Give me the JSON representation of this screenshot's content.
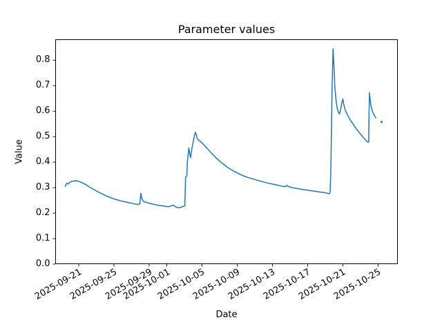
{
  "chart_data": {
    "type": "line",
    "title": "Parameter values",
    "xlabel": "Date",
    "ylabel": "Value",
    "grid": false,
    "legend": "none",
    "background_color": "#ffffff",
    "axis_color": "#000000",
    "line_color": "#1f77b4",
    "x_unit": "days since 2025-09-21",
    "xlim": [
      -2.67,
      36.24
    ],
    "ylim": [
      0.0,
      0.882
    ],
    "x_ticks": [
      {
        "label": "2025-09-21",
        "d": 0
      },
      {
        "label": "2025-09-25",
        "d": 4
      },
      {
        "label": "2025-09-29",
        "d": 8
      },
      {
        "label": "2025-10-01",
        "d": 10
      },
      {
        "label": "2025-10-05",
        "d": 14
      },
      {
        "label": "2025-10-09",
        "d": 18
      },
      {
        "label": "2025-10-13",
        "d": 22
      },
      {
        "label": "2025-10-17",
        "d": 26
      },
      {
        "label": "2025-10-21",
        "d": 30
      },
      {
        "label": "2025-10-25",
        "d": 34
      }
    ],
    "y_ticks": [
      {
        "label": "0.0",
        "v": 0.0
      },
      {
        "label": "0.1",
        "v": 0.1
      },
      {
        "label": "0.2",
        "v": 0.2
      },
      {
        "label": "0.3",
        "v": 0.3
      },
      {
        "label": "0.4",
        "v": 0.4
      },
      {
        "label": "0.5",
        "v": 0.5
      },
      {
        "label": "0.6",
        "v": 0.6
      },
      {
        "label": "0.7",
        "v": 0.7
      },
      {
        "label": "0.8",
        "v": 0.8
      }
    ],
    "series": [
      {
        "name": "parameter-values",
        "points": [
          [
            -1.55,
            0.305
          ],
          [
            -1.45,
            0.312
          ],
          [
            -1.35,
            0.318
          ],
          [
            -1.2,
            0.314
          ],
          [
            -1.05,
            0.32
          ],
          [
            -0.85,
            0.324
          ],
          [
            -0.6,
            0.326
          ],
          [
            -0.3,
            0.327
          ],
          [
            0,
            0.325
          ],
          [
            0.4,
            0.319
          ],
          [
            0.8,
            0.312
          ],
          [
            1.2,
            0.303
          ],
          [
            1.6,
            0.295
          ],
          [
            2,
            0.287
          ],
          [
            2.4,
            0.28
          ],
          [
            2.8,
            0.273
          ],
          [
            3.2,
            0.267
          ],
          [
            3.6,
            0.261
          ],
          [
            4,
            0.256
          ],
          [
            4.4,
            0.252
          ],
          [
            4.8,
            0.248
          ],
          [
            5.2,
            0.245
          ],
          [
            5.6,
            0.242
          ],
          [
            6,
            0.239
          ],
          [
            6.4,
            0.236
          ],
          [
            6.8,
            0.234
          ],
          [
            6.95,
            0.238
          ],
          [
            7.05,
            0.278
          ],
          [
            7.15,
            0.258
          ],
          [
            7.3,
            0.248
          ],
          [
            7.5,
            0.244
          ],
          [
            7.8,
            0.241
          ],
          [
            8.2,
            0.237
          ],
          [
            8.6,
            0.234
          ],
          [
            9,
            0.231
          ],
          [
            9.4,
            0.229
          ],
          [
            9.8,
            0.227
          ],
          [
            10.2,
            0.225
          ],
          [
            10.55,
            0.229
          ],
          [
            10.75,
            0.231
          ],
          [
            10.95,
            0.226
          ],
          [
            11.25,
            0.221
          ],
          [
            11.5,
            0.222
          ],
          [
            11.75,
            0.225
          ],
          [
            11.95,
            0.227
          ],
          [
            12.05,
            0.229
          ],
          [
            12.1,
            0.3
          ],
          [
            12.13,
            0.341
          ],
          [
            12.28,
            0.346
          ],
          [
            12.33,
            0.4
          ],
          [
            12.42,
            0.428
          ],
          [
            12.5,
            0.456
          ],
          [
            12.6,
            0.432
          ],
          [
            12.7,
            0.418
          ],
          [
            12.85,
            0.452
          ],
          [
            13,
            0.482
          ],
          [
            13.15,
            0.506
          ],
          [
            13.25,
            0.517
          ],
          [
            13.35,
            0.508
          ],
          [
            13.45,
            0.492
          ],
          [
            13.6,
            0.487
          ],
          [
            13.8,
            0.482
          ],
          [
            14,
            0.476
          ],
          [
            14.2,
            0.469
          ],
          [
            14.5,
            0.457
          ],
          [
            14.8,
            0.446
          ],
          [
            15.2,
            0.431
          ],
          [
            15.6,
            0.417
          ],
          [
            16,
            0.404
          ],
          [
            16.4,
            0.393
          ],
          [
            16.8,
            0.382
          ],
          [
            17.2,
            0.373
          ],
          [
            17.6,
            0.365
          ],
          [
            18,
            0.358
          ],
          [
            18.4,
            0.351
          ],
          [
            18.8,
            0.345
          ],
          [
            19.2,
            0.34
          ],
          [
            19.6,
            0.336
          ],
          [
            20,
            0.332
          ],
          [
            20.4,
            0.328
          ],
          [
            20.8,
            0.324
          ],
          [
            21.2,
            0.32
          ],
          [
            21.6,
            0.317
          ],
          [
            22,
            0.314
          ],
          [
            22.4,
            0.311
          ],
          [
            22.8,
            0.308
          ],
          [
            23.2,
            0.305
          ],
          [
            23.5,
            0.304
          ],
          [
            23.65,
            0.309
          ],
          [
            23.8,
            0.305
          ],
          [
            24,
            0.302
          ],
          [
            24.4,
            0.299
          ],
          [
            24.8,
            0.297
          ],
          [
            25.2,
            0.294
          ],
          [
            25.6,
            0.292
          ],
          [
            26,
            0.29
          ],
          [
            26.4,
            0.288
          ],
          [
            26.8,
            0.286
          ],
          [
            27.2,
            0.284
          ],
          [
            27.6,
            0.282
          ],
          [
            28,
            0.28
          ],
          [
            28.25,
            0.278
          ],
          [
            28.4,
            0.276
          ],
          [
            28.5,
            0.278
          ],
          [
            28.55,
            0.283
          ],
          [
            28.62,
            0.35
          ],
          [
            28.7,
            0.52
          ],
          [
            28.78,
            0.7
          ],
          [
            28.88,
            0.845
          ],
          [
            28.98,
            0.78
          ],
          [
            29.08,
            0.7
          ],
          [
            29.2,
            0.648
          ],
          [
            29.35,
            0.612
          ],
          [
            29.5,
            0.594
          ],
          [
            29.62,
            0.589
          ],
          [
            29.75,
            0.608
          ],
          [
            29.88,
            0.632
          ],
          [
            30,
            0.648
          ],
          [
            30.1,
            0.627
          ],
          [
            30.25,
            0.607
          ],
          [
            30.45,
            0.59
          ],
          [
            30.7,
            0.574
          ],
          [
            30.95,
            0.56
          ],
          [
            31.2,
            0.547
          ],
          [
            31.5,
            0.532
          ],
          [
            31.8,
            0.519
          ],
          [
            32.1,
            0.506
          ],
          [
            32.4,
            0.494
          ],
          [
            32.65,
            0.484
          ],
          [
            32.85,
            0.478
          ],
          [
            32.93,
            0.48
          ],
          [
            32.97,
            0.58
          ],
          [
            33.02,
            0.672
          ],
          [
            33.1,
            0.645
          ],
          [
            33.2,
            0.62
          ],
          [
            33.35,
            0.6
          ],
          [
            33.5,
            0.588
          ],
          [
            33.65,
            0.579
          ],
          [
            33.75,
            0.574
          ]
        ]
      }
    ],
    "isolated_points": [
      [
        34.4,
        0.558
      ]
    ]
  }
}
